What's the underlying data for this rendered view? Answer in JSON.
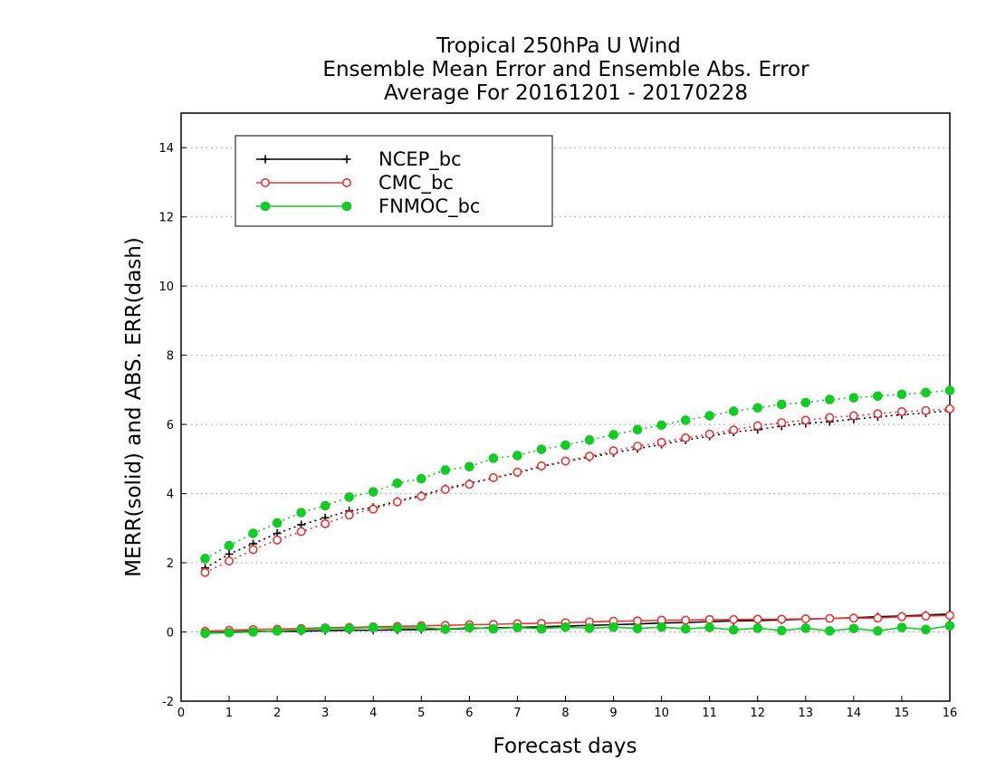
{
  "chart_data": {
    "type": "line",
    "title": "Tropical 250hPa U Wind",
    "subtitle": "Ensemble Mean Error and Ensemble Abs. Error",
    "period": "Average For 20161201 - 20170228",
    "xlabel": "Forecast days",
    "ylabel": "MERR(solid) and ABS. ERR(dash)",
    "xlim": [
      0,
      16
    ],
    "ylim": [
      -2,
      15
    ],
    "xticks": [
      0,
      1,
      2,
      3,
      4,
      5,
      6,
      7,
      8,
      9,
      10,
      11,
      12,
      13,
      14,
      15,
      16
    ],
    "yticks": [
      -2,
      0,
      2,
      4,
      6,
      8,
      10,
      12,
      14
    ],
    "grid": "horizontal dotted",
    "legend_position": "top-left",
    "x": [
      0.5,
      1,
      1.5,
      2,
      2.5,
      3,
      3.5,
      4,
      4.5,
      5,
      5.5,
      6,
      6.5,
      7,
      7.5,
      8,
      8.5,
      9,
      9.5,
      10,
      10.5,
      11,
      11.5,
      12,
      12.5,
      13,
      13.5,
      14,
      14.5,
      15,
      15.5,
      16
    ],
    "series": [
      {
        "name": "NCEP_bc",
        "color": "#000000",
        "marker": "plus",
        "merr": [
          -0.03,
          0.0,
          0.02,
          0.02,
          0.02,
          0.04,
          0.05,
          0.05,
          0.06,
          0.07,
          0.08,
          0.1,
          0.12,
          0.13,
          0.15,
          0.17,
          0.19,
          0.21,
          0.23,
          0.26,
          0.27,
          0.3,
          0.32,
          0.33,
          0.35,
          0.37,
          0.39,
          0.41,
          0.44,
          0.46,
          0.49,
          0.52
        ],
        "abs_err": [
          1.85,
          2.25,
          2.55,
          2.85,
          3.1,
          3.3,
          3.5,
          3.6,
          3.78,
          3.95,
          4.15,
          4.3,
          4.45,
          4.6,
          4.78,
          4.93,
          5.05,
          5.18,
          5.3,
          5.42,
          5.55,
          5.66,
          5.78,
          5.85,
          5.95,
          6.03,
          6.08,
          6.15,
          6.22,
          6.28,
          6.33,
          6.4
        ]
      },
      {
        "name": "CMC_bc",
        "color": "#ee3333",
        "marker": "open-circle",
        "merr": [
          0.02,
          0.05,
          0.07,
          0.08,
          0.1,
          0.12,
          0.13,
          0.15,
          0.16,
          0.18,
          0.19,
          0.21,
          0.22,
          0.24,
          0.25,
          0.27,
          0.29,
          0.31,
          0.32,
          0.34,
          0.34,
          0.36,
          0.36,
          0.37,
          0.37,
          0.38,
          0.39,
          0.4,
          0.4,
          0.44,
          0.46,
          0.48
        ],
        "abs_err": [
          1.72,
          2.05,
          2.38,
          2.66,
          2.9,
          3.13,
          3.38,
          3.55,
          3.76,
          3.92,
          4.12,
          4.27,
          4.46,
          4.62,
          4.8,
          4.94,
          5.08,
          5.24,
          5.37,
          5.48,
          5.61,
          5.72,
          5.84,
          5.96,
          6.05,
          6.12,
          6.2,
          6.25,
          6.31,
          6.37,
          6.4,
          6.45
        ]
      },
      {
        "name": "FNMOC_bc",
        "color": "#11cc22",
        "marker": "filled-circle",
        "merr": [
          -0.04,
          -0.02,
          0.0,
          0.03,
          0.06,
          0.1,
          0.1,
          0.13,
          0.11,
          0.13,
          0.08,
          0.13,
          0.09,
          0.13,
          0.09,
          0.14,
          0.11,
          0.14,
          0.1,
          0.14,
          0.09,
          0.13,
          0.06,
          0.11,
          0.04,
          0.11,
          0.03,
          0.1,
          0.03,
          0.13,
          0.07,
          0.18
        ],
        "abs_err": [
          2.12,
          2.5,
          2.85,
          3.15,
          3.45,
          3.65,
          3.9,
          4.05,
          4.3,
          4.43,
          4.68,
          4.78,
          5.02,
          5.1,
          5.28,
          5.4,
          5.55,
          5.7,
          5.85,
          5.98,
          6.12,
          6.25,
          6.38,
          6.48,
          6.58,
          6.63,
          6.72,
          6.77,
          6.82,
          6.87,
          6.92,
          6.98
        ]
      }
    ]
  }
}
